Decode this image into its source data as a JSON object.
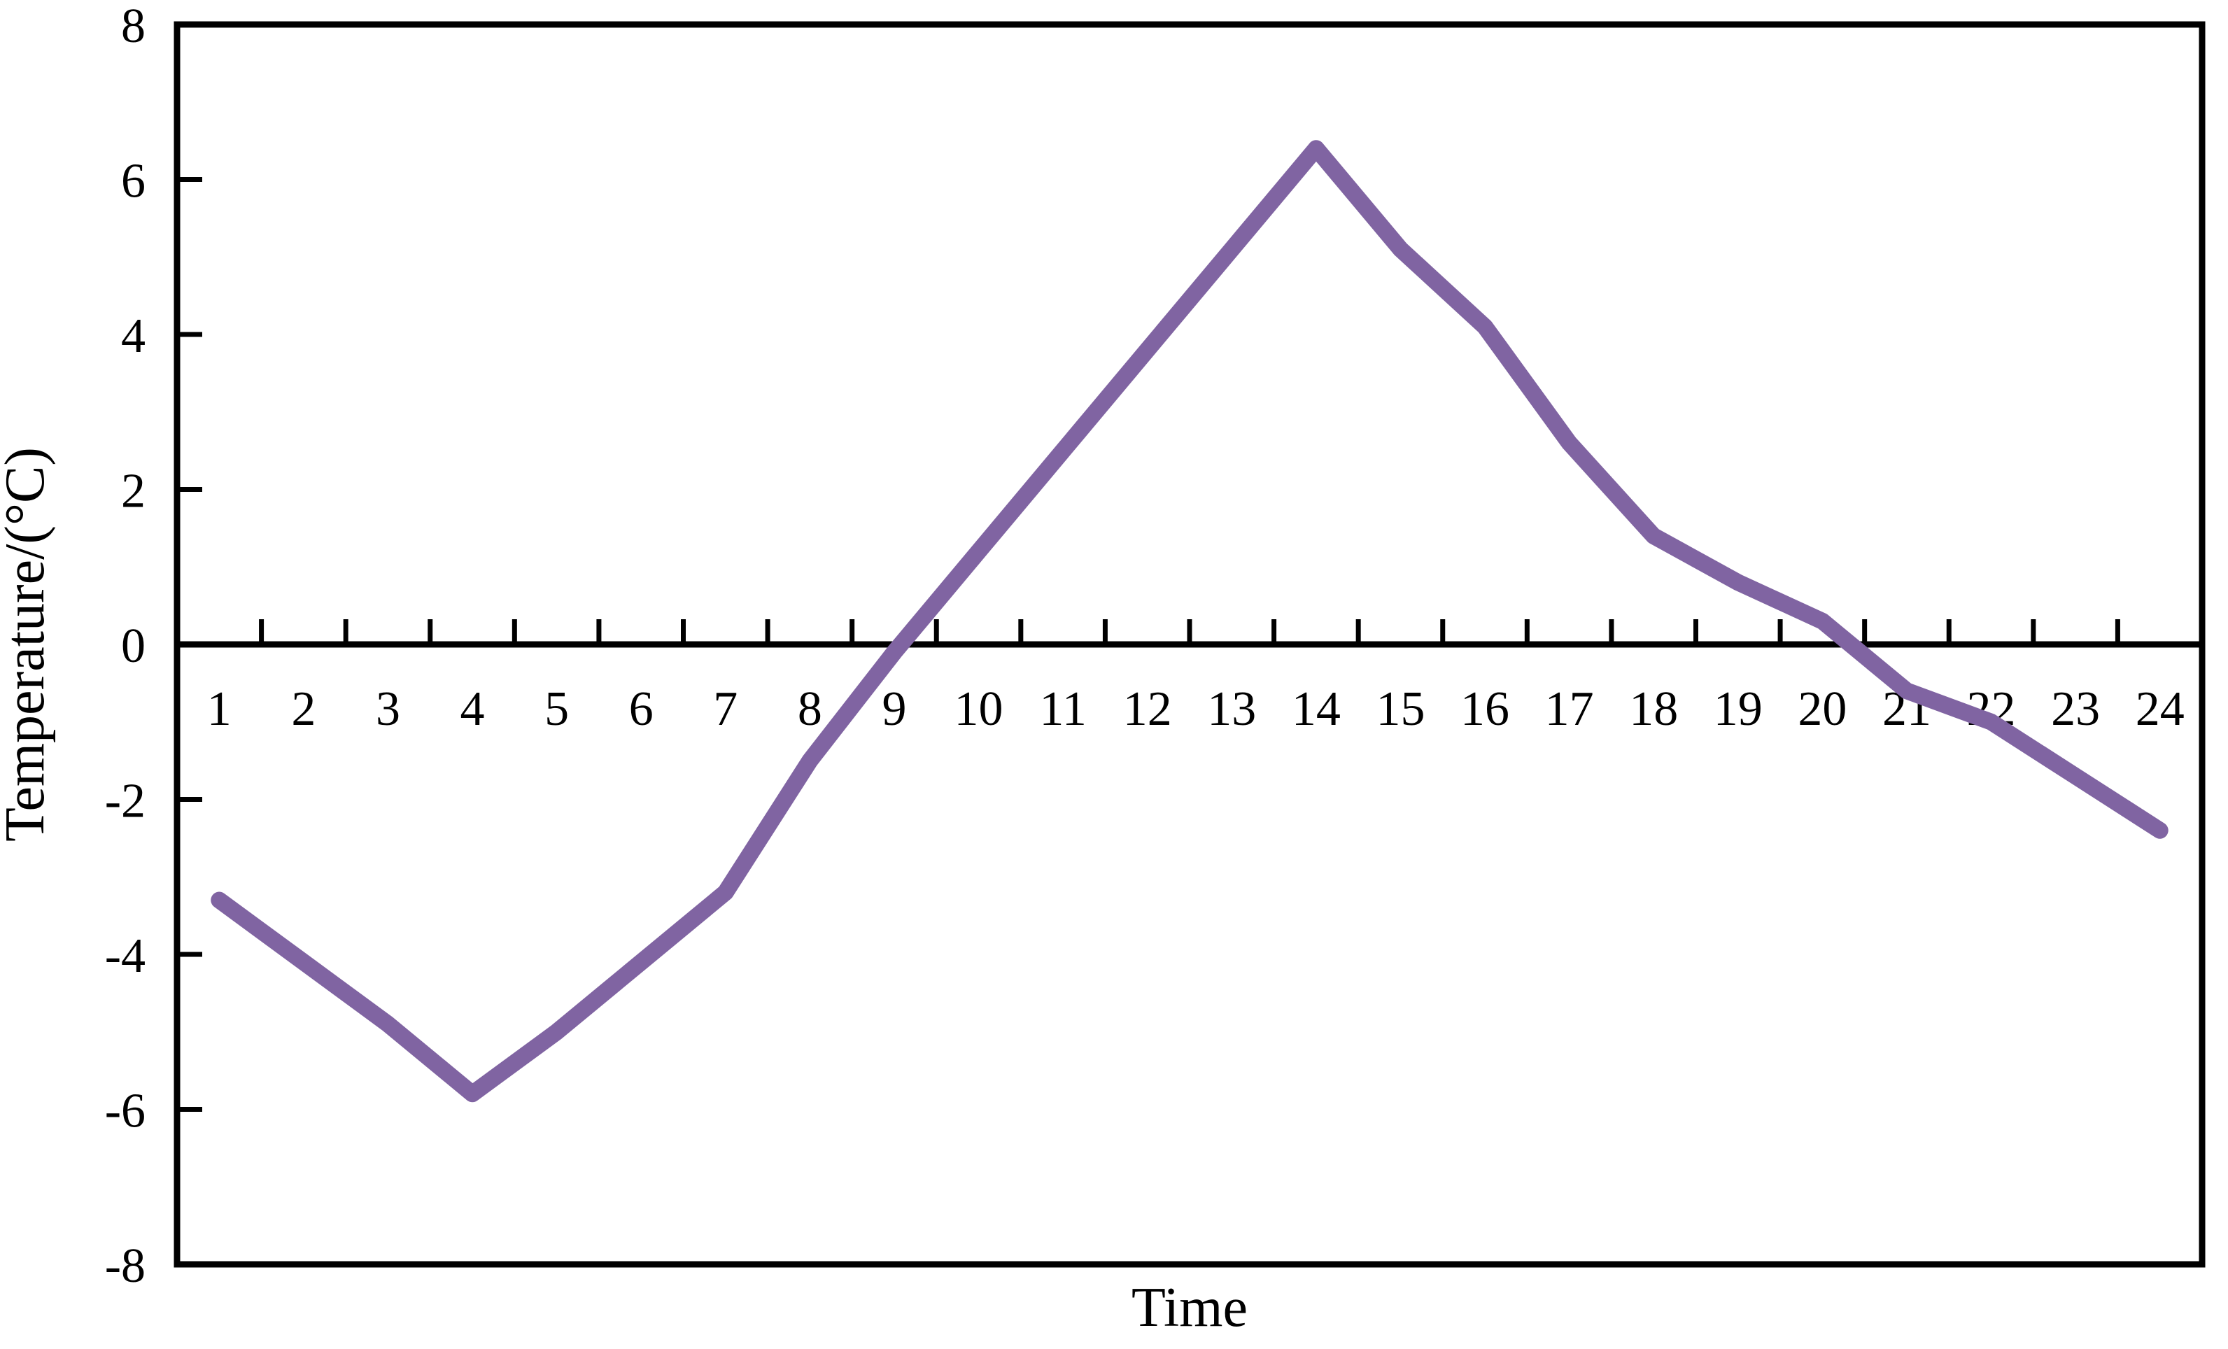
{
  "chart_data": {
    "type": "line",
    "title": "",
    "xlabel": "Time",
    "ylabel": "Temperature/(°C)",
    "x": [
      1,
      2,
      3,
      4,
      5,
      6,
      7,
      8,
      9,
      10,
      11,
      12,
      13,
      14,
      15,
      16,
      17,
      18,
      19,
      20,
      21,
      22,
      23,
      24
    ],
    "x_tick_labels": [
      "1",
      "2",
      "3",
      "4",
      "5",
      "6",
      "7",
      "8",
      "9",
      "10",
      "11",
      "12",
      "13",
      "14",
      "15",
      "16",
      "17",
      "18",
      "19",
      "20",
      "21",
      "22",
      "23",
      "24"
    ],
    "series": [
      {
        "name": "Temperature",
        "values": [
          -3.3,
          -4.1,
          -4.9,
          -5.8,
          -5.0,
          -4.1,
          -3.2,
          -1.5,
          -0.1,
          1.2,
          2.5,
          3.8,
          5.1,
          6.4,
          5.1,
          4.1,
          2.6,
          1.4,
          0.8,
          0.3,
          -0.6,
          -1.0,
          -1.7,
          -2.4
        ]
      }
    ],
    "ylim": [
      -8,
      8
    ],
    "y_ticks": [
      8,
      6,
      4,
      2,
      0,
      -2,
      -4,
      -6,
      -8
    ],
    "y_tick_labels": [
      "8",
      "6",
      "4",
      "2",
      "0",
      "-2",
      "-4",
      "-6",
      "-8"
    ],
    "grid": false,
    "legend": false,
    "line_color": "#8064A2",
    "axis_color": "#000000",
    "background_color": "#ffffff"
  }
}
